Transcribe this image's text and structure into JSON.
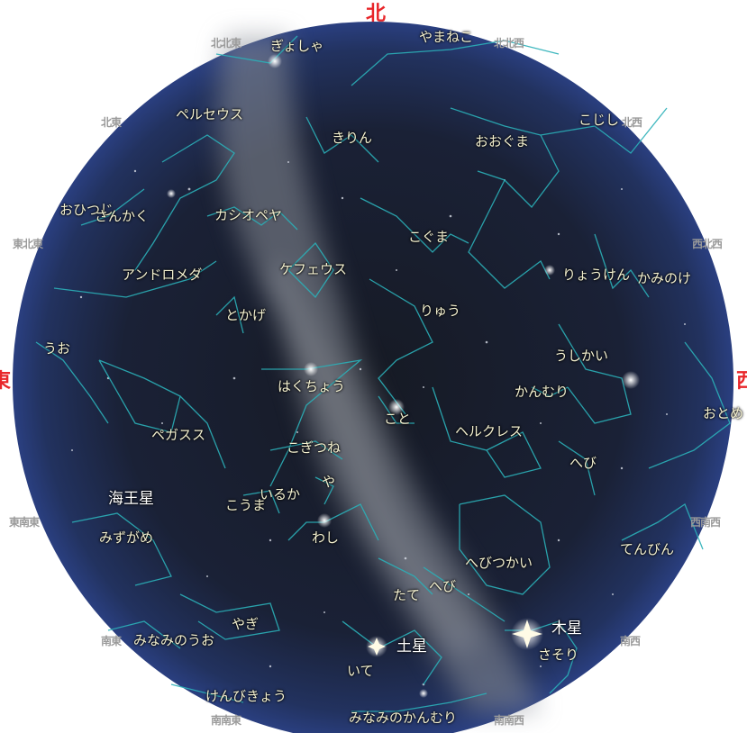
{
  "directions": {
    "north": "北",
    "east": "東",
    "west": "西",
    "nnw": "北北西",
    "nne": "北北東",
    "ne": "北東",
    "nw": "北西",
    "ene": "東北東",
    "wnw": "西北西",
    "ese": "東南東",
    "wsw": "西南西",
    "se": "南東",
    "sw": "南西",
    "sse": "南南東",
    "ssw": "南南西"
  },
  "constellations": {
    "gyosha": "ぎょしゃ",
    "oguma_top": "やまねこ",
    "perseus": "ペルセウス",
    "kirin": "きりん",
    "ooguma": "おおぐま",
    "kojishi": "こじし",
    "ohitsuji": "おひつじ",
    "sankaku": "さんかく",
    "cassiopeia": "カシオペヤ",
    "koguma": "こぐま",
    "andromeda": "アンドロメダ",
    "cepheus": "ケフェウス",
    "ryoken": "りょうけん",
    "kaminoke": "かみのけ",
    "uo": "うお",
    "tokage": "とかげ",
    "ryu": "りゅう",
    "ushikai": "うしかい",
    "hakucho": "はくちょう",
    "kanmuri": "かんむり",
    "otome": "おとめ",
    "koto": "こと",
    "hercules": "ヘルクレス",
    "pegasus": "ペガスス",
    "kogitsune": "こぎつね",
    "hebi1": "へび",
    "ya": "や",
    "iruka": "いるか",
    "kouma": "こうま",
    "washi": "わし",
    "mizugame": "みずがめ",
    "hebitsukai": "へびつかい",
    "tenbin": "てんびん",
    "tate": "たて",
    "hebi2": "へび",
    "yagi": "やぎ",
    "minamino_uo": "みなみのうお",
    "ite": "いて",
    "sasori": "さそり",
    "kenbikyo": "けんびきょう",
    "minami_kanmuri": "みなみのかんむり"
  },
  "planets": {
    "neptune": "海王星",
    "saturn": "土星",
    "jupiter": "木星"
  },
  "colors": {
    "sky_center": "#1b2030",
    "sky_edge": "#253a78",
    "constellation_line": "#2bb0b8",
    "label": "#f4f1d0",
    "cardinal": "#e8262a"
  }
}
